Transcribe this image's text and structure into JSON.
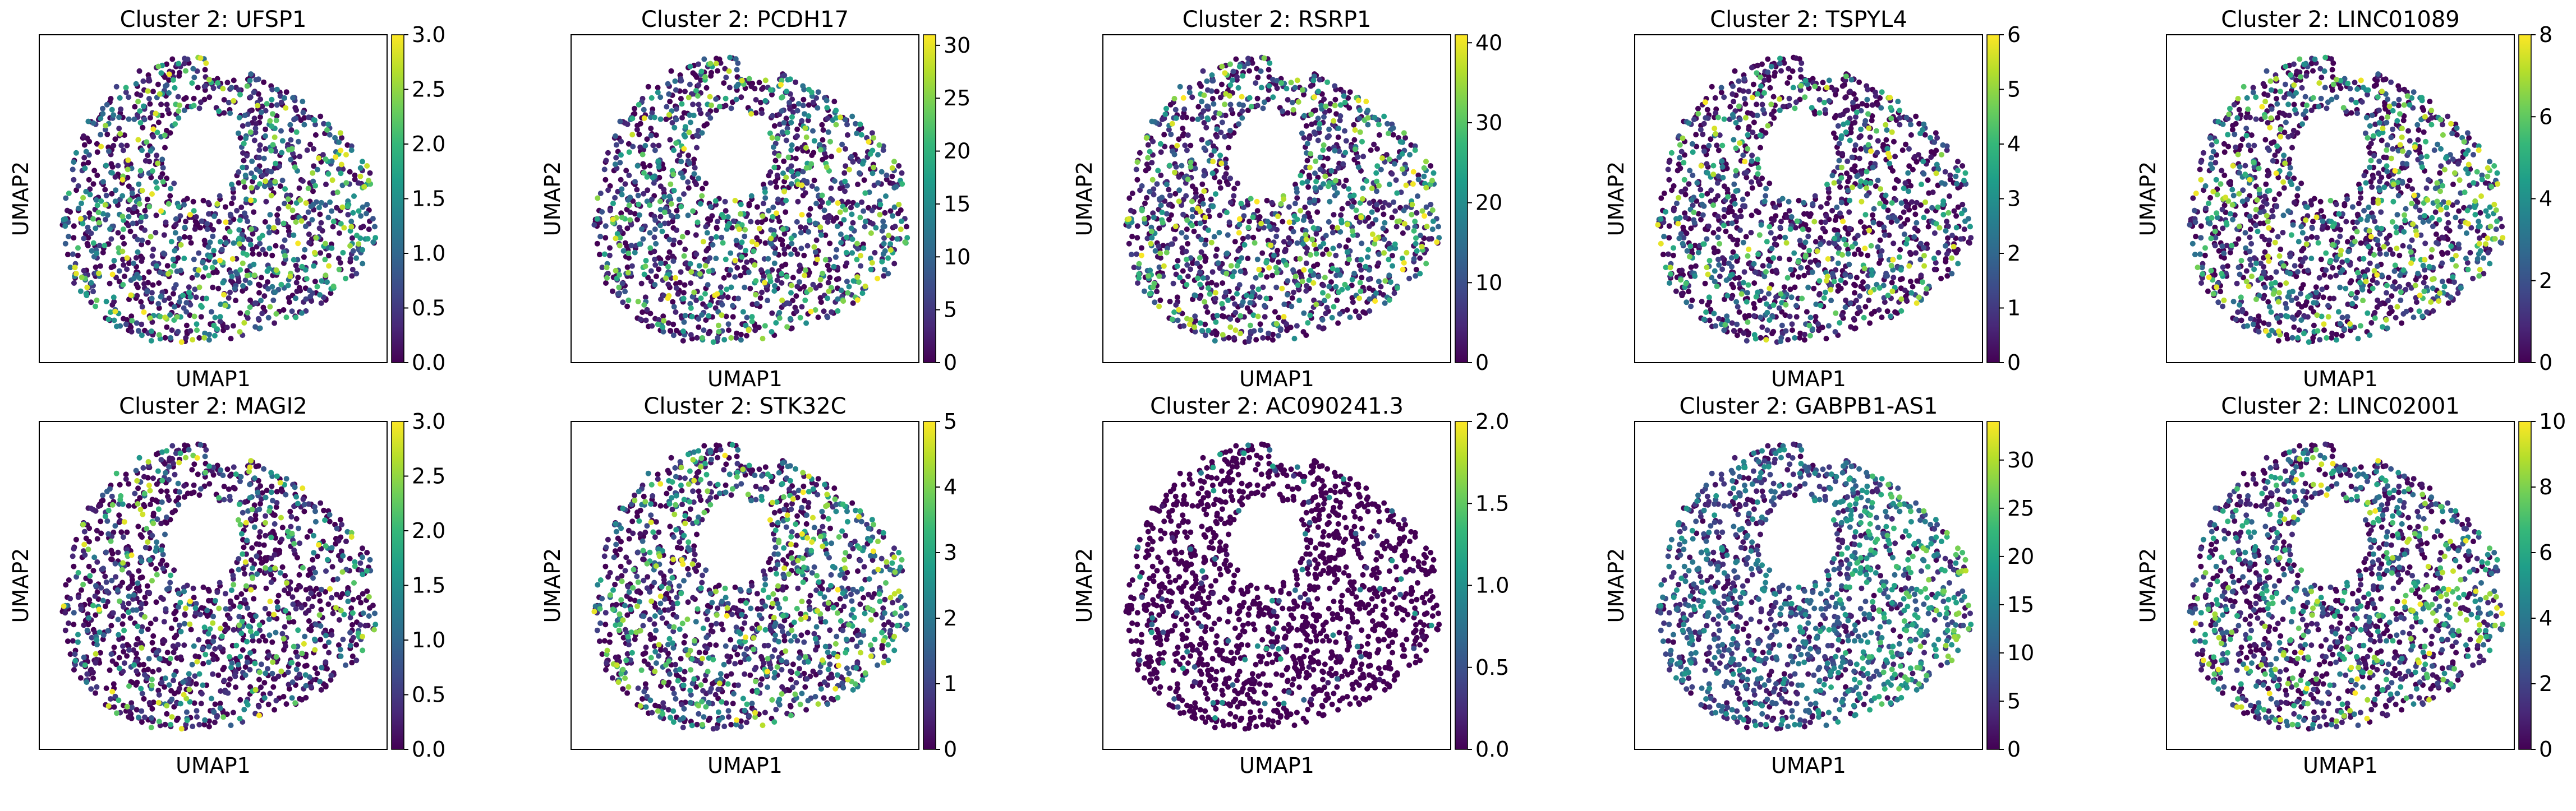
{
  "figure": {
    "rows": 2,
    "cols": 5,
    "colormap": [
      "#440154",
      "#482878",
      "#3e4a89",
      "#31688e",
      "#26828e",
      "#1f9e89",
      "#35b779",
      "#6ece58",
      "#b5de2b",
      "#fde725"
    ],
    "background_color": "#440154"
  },
  "chart_data": [
    {
      "type": "scatter",
      "title": "Cluster 2: UFSP1",
      "xlabel": "UMAP1",
      "ylabel": "UMAP2",
      "colorbar": {
        "range": [
          0,
          3
        ],
        "ticks": [
          0,
          0.5,
          1,
          1.5,
          2,
          2.5,
          3
        ],
        "tick_labels": [
          "0.0",
          "0.5",
          "1.0",
          "1.5",
          "2.0",
          "2.5",
          "3.0"
        ]
      },
      "expression_bias": "right"
    },
    {
      "type": "scatter",
      "title": "Cluster 2: PCDH17",
      "xlabel": "UMAP1",
      "ylabel": "UMAP2",
      "colorbar": {
        "range": [
          0,
          31
        ],
        "ticks": [
          0,
          5,
          10,
          15,
          20,
          25,
          30
        ],
        "tick_labels": [
          "0",
          "5",
          "10",
          "15",
          "20",
          "25",
          "30"
        ]
      },
      "expression_bias": "right"
    },
    {
      "type": "scatter",
      "title": "Cluster 2: RSRP1",
      "xlabel": "UMAP1",
      "ylabel": "UMAP2",
      "colorbar": {
        "range": [
          0,
          41
        ],
        "ticks": [
          0,
          10,
          20,
          30,
          40
        ],
        "tick_labels": [
          "0",
          "10",
          "20",
          "30",
          "40"
        ]
      },
      "expression_bias": "right"
    },
    {
      "type": "scatter",
      "title": "Cluster 2: TSPYL4",
      "xlabel": "UMAP1",
      "ylabel": "UMAP2",
      "colorbar": {
        "range": [
          0,
          6
        ],
        "ticks": [
          0,
          1,
          2,
          3,
          4,
          5,
          6
        ],
        "tick_labels": [
          "0",
          "1",
          "2",
          "3",
          "4",
          "5",
          "6"
        ]
      },
      "expression_bias": "uniform"
    },
    {
      "type": "scatter",
      "title": "Cluster 2: LINC01089",
      "xlabel": "UMAP1",
      "ylabel": "UMAP2",
      "colorbar": {
        "range": [
          0,
          8
        ],
        "ticks": [
          0,
          2,
          4,
          6,
          8
        ],
        "tick_labels": [
          "0",
          "2",
          "4",
          "6",
          "8"
        ]
      },
      "expression_bias": "right"
    },
    {
      "type": "scatter",
      "title": "Cluster 2: MAGI2",
      "xlabel": "UMAP1",
      "ylabel": "UMAP2",
      "colorbar": {
        "range": [
          0,
          3
        ],
        "ticks": [
          0,
          0.5,
          1,
          1.5,
          2,
          2.5,
          3
        ],
        "tick_labels": [
          "0.0",
          "0.5",
          "1.0",
          "1.5",
          "2.0",
          "2.5",
          "3.0"
        ]
      },
      "expression_bias": "uniform"
    },
    {
      "type": "scatter",
      "title": "Cluster 2: STK32C",
      "xlabel": "UMAP1",
      "ylabel": "UMAP2",
      "colorbar": {
        "range": [
          0,
          5
        ],
        "ticks": [
          0,
          1,
          2,
          3,
          4,
          5
        ],
        "tick_labels": [
          "0",
          "1",
          "2",
          "3",
          "4",
          "5"
        ]
      },
      "expression_bias": "right"
    },
    {
      "type": "scatter",
      "title": "Cluster 2: AC090241.3",
      "xlabel": "UMAP1",
      "ylabel": "UMAP2",
      "colorbar": {
        "range": [
          0,
          2
        ],
        "ticks": [
          0,
          0.5,
          1,
          1.5,
          2
        ],
        "tick_labels": [
          "0.0",
          "0.5",
          "1.0",
          "1.5",
          "2.0"
        ]
      },
      "expression_bias": "sparse"
    },
    {
      "type": "scatter",
      "title": "Cluster 2: GABPB1-AS1",
      "xlabel": "UMAP1",
      "ylabel": "UMAP2",
      "colorbar": {
        "range": [
          0,
          34
        ],
        "ticks": [
          0,
          5,
          10,
          15,
          20,
          25,
          30
        ],
        "tick_labels": [
          "0",
          "5",
          "10",
          "15",
          "20",
          "25",
          "30"
        ]
      },
      "expression_bias": "high"
    },
    {
      "type": "scatter",
      "title": "Cluster 2: LINC02001",
      "xlabel": "UMAP1",
      "ylabel": "UMAP2",
      "colorbar": {
        "range": [
          0,
          10
        ],
        "ticks": [
          0,
          2,
          4,
          6,
          8,
          10
        ],
        "tick_labels": [
          "0",
          "2",
          "4",
          "6",
          "8",
          "10"
        ]
      },
      "expression_bias": "right"
    }
  ]
}
